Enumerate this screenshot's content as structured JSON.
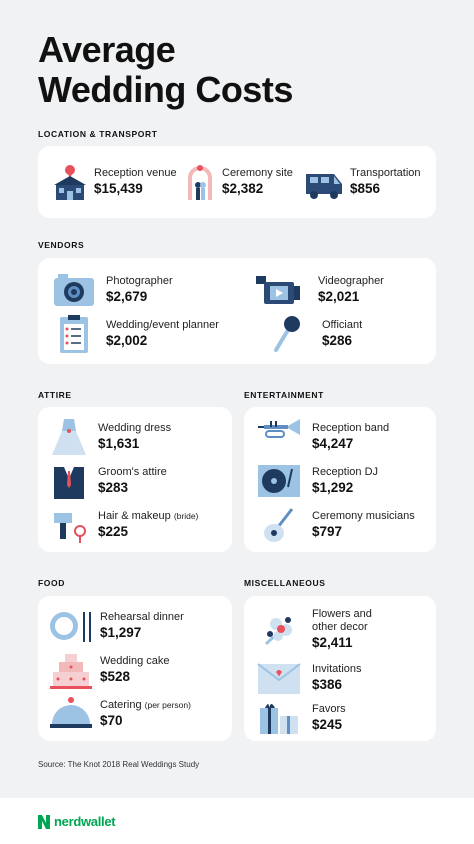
{
  "title_line1": "Average",
  "title_line2": "Wedding Costs",
  "sections": {
    "location": "LOCATION & TRANSPORT",
    "vendors": "VENDORS",
    "attire": "ATTIRE",
    "entertainment": "ENTERTAINMENT",
    "food": "FOOD",
    "misc": "MISCELLANEOUS"
  },
  "location": [
    {
      "label": "Reception venue",
      "value": "$15,439",
      "icon": "house-icon"
    },
    {
      "label": "Ceremony site",
      "value": "$2,382",
      "icon": "arch-icon"
    },
    {
      "label": "Transportation",
      "value": "$856",
      "icon": "van-icon"
    }
  ],
  "vendors": [
    {
      "label": "Photographer",
      "value": "$2,679",
      "icon": "camera-icon"
    },
    {
      "label": "Videographer",
      "value": "$2,021",
      "icon": "video-camera-icon"
    },
    {
      "label": "Wedding/event planner",
      "value": "$2,002",
      "icon": "clipboard-icon"
    },
    {
      "label": "Officiant",
      "value": "$286",
      "icon": "microphone-icon"
    }
  ],
  "attire": [
    {
      "label": "Wedding dress",
      "value": "$1,631",
      "icon": "dress-icon"
    },
    {
      "label": "Groom's attire",
      "value": "$283",
      "icon": "suit-icon"
    },
    {
      "label": "Hair & makeup",
      "note": "(bride)",
      "value": "$225",
      "icon": "hairdryer-icon"
    }
  ],
  "entertainment": [
    {
      "label": "Reception band",
      "value": "$4,247",
      "icon": "trumpet-icon"
    },
    {
      "label": "Reception DJ",
      "value": "$1,292",
      "icon": "turntable-icon"
    },
    {
      "label": "Ceremony musicians",
      "value": "$797",
      "icon": "guitar-icon"
    }
  ],
  "food": [
    {
      "label": "Rehearsal dinner",
      "value": "$1,297",
      "icon": "plate-icon"
    },
    {
      "label": "Wedding cake",
      "value": "$528",
      "icon": "cake-icon"
    },
    {
      "label": "Catering",
      "note": "(per person)",
      "value": "$70",
      "icon": "cloche-icon"
    }
  ],
  "misc": [
    {
      "label": "Flowers and",
      "label2": "other decor",
      "value": "$2,411",
      "icon": "flowers-icon"
    },
    {
      "label": "Invitations",
      "value": "$386",
      "icon": "envelope-icon"
    },
    {
      "label": "Favors",
      "value": "$245",
      "icon": "gift-icon"
    }
  ],
  "source": "Source: The Knot 2018 Real Weddings Study",
  "brand": "nerdwallet",
  "colors": {
    "navy": "#1f3a5f",
    "blue": "#9cc3e4",
    "pink": "#e8505b",
    "brand_green": "#00a651"
  }
}
